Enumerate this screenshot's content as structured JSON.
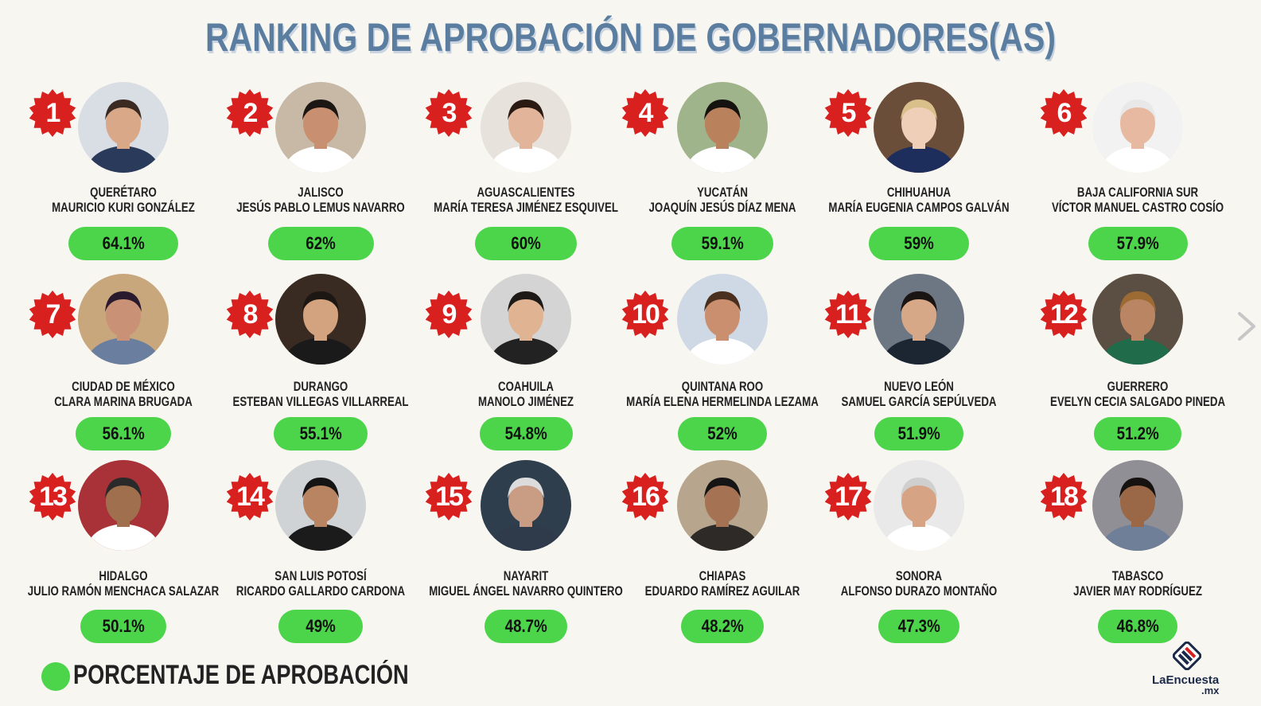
{
  "title": "RANKING DE APROBACIÓN DE GOBERNADORES(AS)",
  "legend": {
    "label": "PORCENTAJE DE APROBACIÓN",
    "color": "#4cd44a"
  },
  "brand": {
    "name": "LaEncuesta",
    "tld": ".mx"
  },
  "colors": {
    "badge": "#d8201f",
    "title": "#5b7ea0",
    "pill": "#4cd44a"
  },
  "governors": [
    {
      "rank": "1",
      "state": "QUERÉTARO",
      "name": "MAURICIO KURI GONZÁLEZ",
      "approval": "64.1%"
    },
    {
      "rank": "2",
      "state": "JALISCO",
      "name": "JESÚS PABLO LEMUS NAVARRO",
      "approval": "62%"
    },
    {
      "rank": "3",
      "state": "AGUASCALIENTES",
      "name": "MARÍA TERESA JIMÉNEZ ESQUIVEL",
      "approval": "60%"
    },
    {
      "rank": "4",
      "state": "YUCATÁN",
      "name": "JOAQUÍN JESÚS DÍAZ MENA",
      "approval": "59.1%"
    },
    {
      "rank": "5",
      "state": "CHIHUAHUA",
      "name": "MARÍA EUGENIA CAMPOS GALVÁN",
      "approval": "59%"
    },
    {
      "rank": "6",
      "state": "BAJA CALIFORNIA SUR",
      "name": "VÍCTOR MANUEL CASTRO COSÍO",
      "approval": "57.9%"
    },
    {
      "rank": "7",
      "state": "CIUDAD DE MÉXICO",
      "name": "CLARA MARINA BRUGADA",
      "approval": "56.1%"
    },
    {
      "rank": "8",
      "state": "DURANGO",
      "name": "ESTEBAN VILLEGAS VILLARREAL",
      "approval": "55.1%"
    },
    {
      "rank": "9",
      "state": "COAHUILA",
      "name": "MANOLO JIMÉNEZ",
      "approval": "54.8%"
    },
    {
      "rank": "10",
      "state": "QUINTANA ROO",
      "name": "MARÍA ELENA HERMELINDA LEZAMA",
      "approval": "52%"
    },
    {
      "rank": "11",
      "state": "NUEVO LEÓN",
      "name": "SAMUEL GARCÍA SEPÚLVEDA",
      "approval": "51.9%"
    },
    {
      "rank": "12",
      "state": "GUERRERO",
      "name": "EVELYN CECIA SALGADO PINEDA",
      "approval": "51.2%"
    },
    {
      "rank": "13",
      "state": "HIDALGO",
      "name": "JULIO RAMÓN MENCHACA SALAZAR",
      "approval": "50.1%"
    },
    {
      "rank": "14",
      "state": "SAN LUIS POTOSÍ",
      "name": "RICARDO GALLARDO CARDONA",
      "approval": "49%"
    },
    {
      "rank": "15",
      "state": "NAYARIT",
      "name": "MIGUEL ÁNGEL NAVARRO QUINTERO",
      "approval": "48.7%"
    },
    {
      "rank": "16",
      "state": "CHIAPAS",
      "name": "EDUARDO RAMÍREZ AGUILAR",
      "approval": "48.2%"
    },
    {
      "rank": "17",
      "state": "SONORA",
      "name": "ALFONSO DURAZO MONTAÑO",
      "approval": "47.3%"
    },
    {
      "rank": "18",
      "state": "TABASCO",
      "name": "JAVIER MAY RODRÍGUEZ",
      "approval": "46.8%"
    }
  ]
}
